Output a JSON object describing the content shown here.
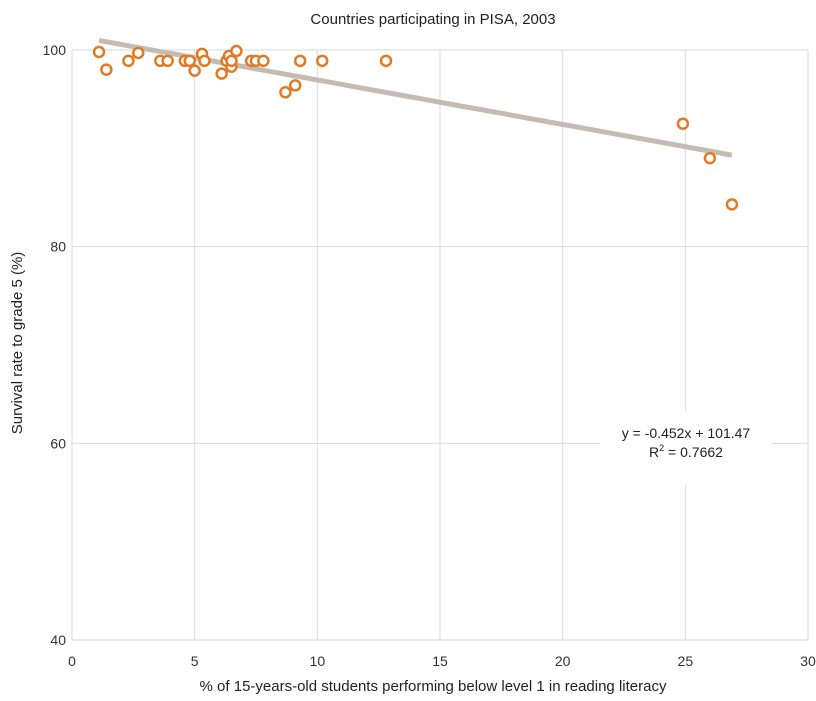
{
  "chart_data": {
    "type": "scatter",
    "title": "Countries participating in PISA, 2003",
    "xlabel": "% of 15-years-old students performing below level 1 in reading literacy",
    "ylabel": "Survival rate to grade 5 (%)",
    "xlim": [
      0,
      30
    ],
    "ylim": [
      40,
      100
    ],
    "xticks": [
      "0",
      "5",
      "10",
      "15",
      "20",
      "25",
      "30"
    ],
    "yticks": [
      "40",
      "60",
      "80",
      "100"
    ],
    "grid": true,
    "points": [
      {
        "x": 1.1,
        "y": 99.8
      },
      {
        "x": 1.4,
        "y": 98.0
      },
      {
        "x": 2.3,
        "y": 98.9
      },
      {
        "x": 2.7,
        "y": 99.7
      },
      {
        "x": 3.6,
        "y": 98.9
      },
      {
        "x": 3.9,
        "y": 98.9
      },
      {
        "x": 4.6,
        "y": 98.9
      },
      {
        "x": 4.8,
        "y": 98.9
      },
      {
        "x": 5.0,
        "y": 97.9
      },
      {
        "x": 5.3,
        "y": 99.6
      },
      {
        "x": 5.4,
        "y": 98.9
      },
      {
        "x": 6.1,
        "y": 97.6
      },
      {
        "x": 6.3,
        "y": 98.9
      },
      {
        "x": 6.4,
        "y": 99.4
      },
      {
        "x": 6.5,
        "y": 98.3
      },
      {
        "x": 6.5,
        "y": 98.9
      },
      {
        "x": 6.7,
        "y": 99.9
      },
      {
        "x": 7.3,
        "y": 98.9
      },
      {
        "x": 7.5,
        "y": 98.9
      },
      {
        "x": 7.8,
        "y": 98.9
      },
      {
        "x": 8.7,
        "y": 95.7
      },
      {
        "x": 9.1,
        "y": 96.4
      },
      {
        "x": 9.3,
        "y": 98.9
      },
      {
        "x": 10.2,
        "y": 98.9
      },
      {
        "x": 12.8,
        "y": 98.9
      },
      {
        "x": 24.9,
        "y": 92.5
      },
      {
        "x": 26.0,
        "y": 89.0
      },
      {
        "x": 26.9,
        "y": 84.3
      }
    ],
    "trendline": {
      "slope": -0.452,
      "intercept": 101.47,
      "x_range": [
        1.1,
        26.9
      ],
      "equation": "y = -0.452x + 101.47",
      "r2_label": "R",
      "r2_sup": "2",
      "r2_value": " = 0.7662"
    },
    "colors": {
      "marker": "#e07b24",
      "trendline": "#c4bcb2",
      "grid": "#d9d9d9"
    }
  }
}
